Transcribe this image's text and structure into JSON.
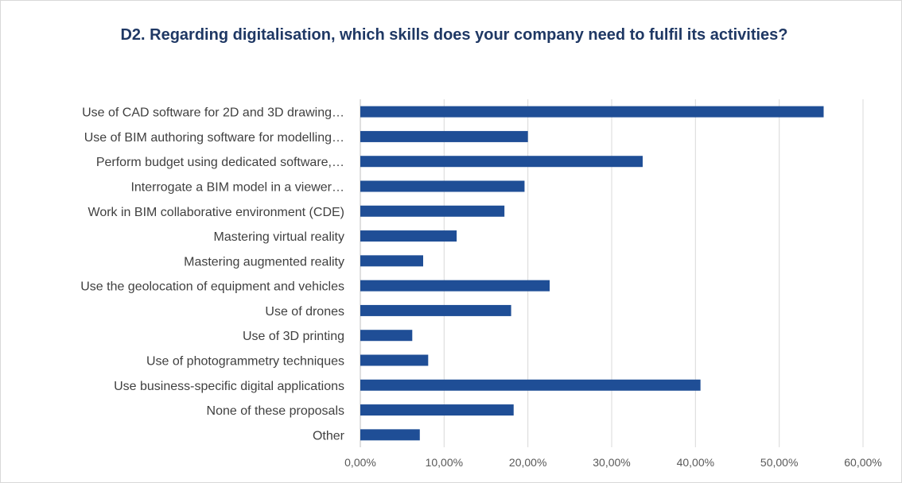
{
  "chart_data": {
    "type": "bar",
    "orientation": "horizontal",
    "title": "D2. Regarding digitalisation, which skills does your company need to fulfil its activities?",
    "xlabel": "",
    "ylabel": "",
    "categories": [
      "Use of CAD software for 2D and 3D drawing…",
      "Use of BIM authoring software for modelling…",
      "Perform budget using dedicated software,…",
      "Interrogate a BIM model in a viewer…",
      "Work in BIM collaborative environment (CDE)",
      "Mastering virtual reality",
      "Mastering augmented reality",
      "Use the geolocation of equipment and vehicles",
      "Use of drones",
      "Use of 3D printing",
      "Use of photogrammetry techniques",
      "Use business-specific digital applications",
      "None of these proposals",
      "Other"
    ],
    "values": [
      55.3,
      20.0,
      33.7,
      19.6,
      17.2,
      11.5,
      7.5,
      22.6,
      18.0,
      6.2,
      8.1,
      40.6,
      18.3,
      7.1
    ],
    "xlim": [
      0,
      60
    ],
    "xticks": [
      "0,00%",
      "10,00%",
      "20,00%",
      "30,00%",
      "40,00%",
      "50,00%",
      "60,00%"
    ],
    "grid": true,
    "legend": "none",
    "bar_color": "#1f4e96"
  }
}
